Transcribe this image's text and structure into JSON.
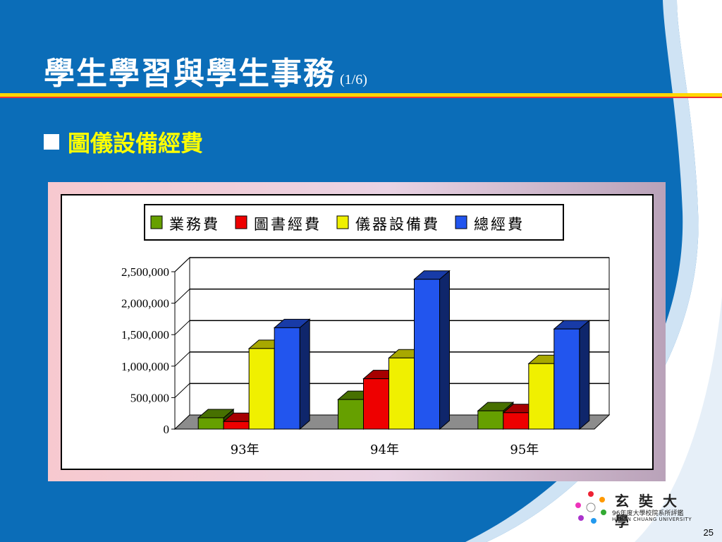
{
  "slide": {
    "title": "學生學習與學生事務",
    "title_sub": "(1/6)",
    "bullet": "圖儀設備經費",
    "page_number": "25"
  },
  "logo": {
    "name": "玄奘大學",
    "line2": "96年度大學校院系所評鑑",
    "line3": "HSUAN CHUANG UNIVERSITY"
  },
  "colors": {
    "background": "#0b6db8",
    "title": "#ffffff",
    "bullet": "#ffff00"
  },
  "chart_data": {
    "type": "bar",
    "categories": [
      "93年",
      "94年",
      "95年"
    ],
    "series": [
      {
        "name": "業務費",
        "values": [
          180000,
          470000,
          290000
        ],
        "color": "#66a000"
      },
      {
        "name": "圖書經費",
        "values": [
          120000,
          800000,
          260000
        ],
        "color": "#ee0000"
      },
      {
        "name": "儀器設備費",
        "values": [
          1280000,
          1130000,
          1040000
        ],
        "color": "#f0f000"
      },
      {
        "name": "總經費",
        "values": [
          1610000,
          2380000,
          1590000
        ],
        "color": "#2255ee"
      }
    ],
    "y_ticks": [
      "0",
      "500,000",
      "1,000,000",
      "1,500,000",
      "2,000,000",
      "2,500,000"
    ],
    "ylim": [
      0,
      2500000
    ],
    "grid": true,
    "legend": "top"
  }
}
